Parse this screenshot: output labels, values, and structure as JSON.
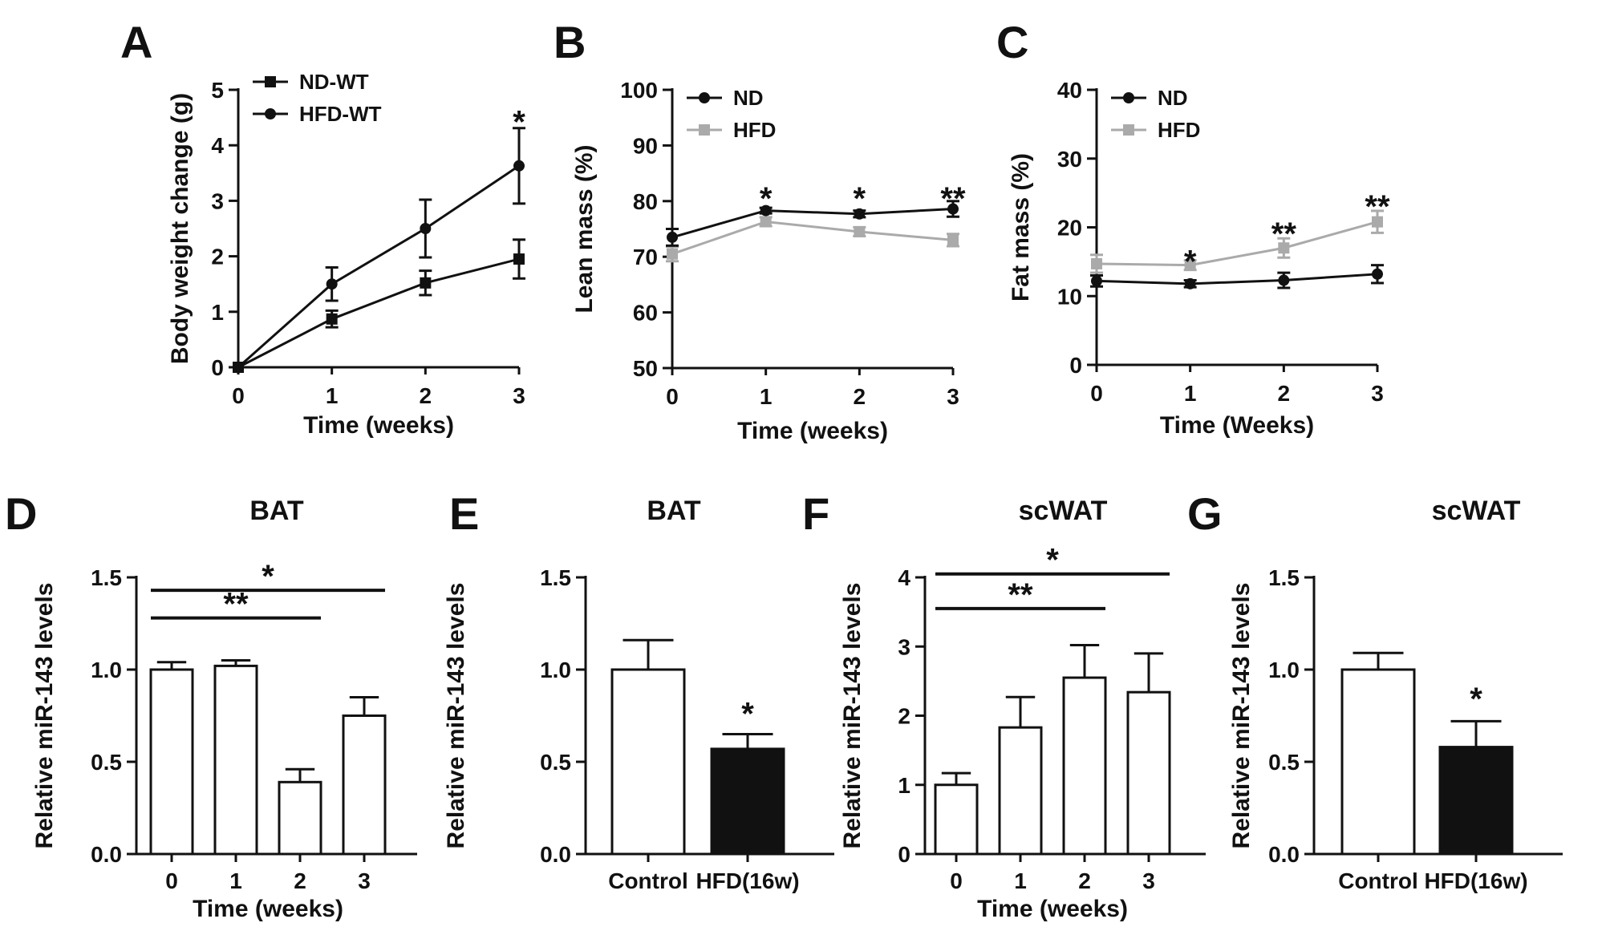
{
  "colors": {
    "ink": "#111111",
    "gray": "#aaaaaa",
    "white": "#ffffff"
  },
  "chart_data": [
    {
      "panel": "A",
      "type": "line",
      "title": "",
      "xlabel": "Time (weeks)",
      "ylabel": "Body weight change (g)",
      "xlim": [
        0,
        3
      ],
      "ylim": [
        0,
        5
      ],
      "xticks": [
        "0",
        "1",
        "2",
        "3"
      ],
      "yticks": [
        "0",
        "1",
        "2",
        "3",
        "4",
        "5"
      ],
      "legend_position": "top-left",
      "series": [
        {
          "name": "ND-WT",
          "marker": "square",
          "color": "#111111",
          "x": [
            0,
            1,
            2,
            3
          ],
          "values": [
            0,
            0.87,
            1.52,
            1.95
          ],
          "errors": [
            0,
            0.15,
            0.22,
            0.35
          ]
        },
        {
          "name": "HFD-WT",
          "marker": "circle",
          "color": "#111111",
          "x": [
            0,
            1,
            2,
            3
          ],
          "values": [
            0,
            1.5,
            2.5,
            3.63
          ],
          "errors": [
            0,
            0.3,
            0.52,
            0.68
          ]
        }
      ],
      "annotations": [
        {
          "x": 3,
          "y": 4.6,
          "text": "*"
        }
      ]
    },
    {
      "panel": "B",
      "type": "line",
      "title": "",
      "xlabel": "Time (weeks)",
      "ylabel": "Lean mass (%)",
      "xlim": [
        0,
        3
      ],
      "ylim": [
        50,
        100
      ],
      "xticks": [
        "0",
        "1",
        "2",
        "3"
      ],
      "yticks": [
        "50",
        "60",
        "70",
        "80",
        "90",
        "100"
      ],
      "legend_position": "top-left",
      "series": [
        {
          "name": "ND",
          "marker": "circle",
          "color": "#111111",
          "x": [
            0,
            1,
            2,
            3
          ],
          "values": [
            73.5,
            78.3,
            77.7,
            78.6
          ],
          "errors": [
            1.5,
            0.5,
            0.6,
            1.4
          ]
        },
        {
          "name": "HFD",
          "marker": "square",
          "color": "#aaaaaa",
          "x": [
            0,
            1,
            2,
            3
          ],
          "values": [
            70.5,
            76.3,
            74.5,
            73
          ],
          "errors": [
            1.3,
            0.8,
            0.8,
            1.1
          ]
        }
      ],
      "annotations": [
        {
          "x": 1,
          "y": 82.3,
          "text": "*"
        },
        {
          "x": 2,
          "y": 82.3,
          "text": "*"
        },
        {
          "x": 3,
          "y": 82.3,
          "text": "**"
        }
      ]
    },
    {
      "panel": "C",
      "type": "line",
      "title": "",
      "xlabel": "Time (Weeks)",
      "ylabel": "Fat mass (%)",
      "xlim": [
        0,
        3
      ],
      "ylim": [
        0,
        40
      ],
      "xticks": [
        "0",
        "1",
        "2",
        "3"
      ],
      "yticks": [
        "0",
        "10",
        "20",
        "30",
        "40"
      ],
      "legend_position": "top-left",
      "series": [
        {
          "name": "ND",
          "marker": "circle",
          "color": "#111111",
          "x": [
            0,
            1,
            2,
            3
          ],
          "values": [
            12.2,
            11.8,
            12.3,
            13.2
          ],
          "errors": [
            0.8,
            0.5,
            1.1,
            1.3
          ]
        },
        {
          "name": "HFD",
          "marker": "square",
          "color": "#aaaaaa",
          "x": [
            0,
            1,
            2,
            3
          ],
          "values": [
            14.7,
            14.5,
            17,
            20.8
          ],
          "errors": [
            1.3,
            0.7,
            1.4,
            1.6
          ]
        }
      ],
      "annotations": [
        {
          "x": 1,
          "y": 16.5,
          "text": "*"
        },
        {
          "x": 2,
          "y": 20.5,
          "text": "**"
        },
        {
          "x": 3,
          "y": 24.5,
          "text": "**"
        }
      ]
    },
    {
      "panel": "D",
      "type": "bar",
      "title": "BAT",
      "xlabel": "Time (weeks)",
      "ylabel": "Relative miR-143 levels",
      "ylim": [
        0,
        1.5
      ],
      "yticks": [
        "0.0",
        "0.5",
        "1.0",
        "1.5"
      ],
      "categories": [
        "0",
        "1",
        "2",
        "3"
      ],
      "series": [
        {
          "name": "miR-143",
          "values": [
            1.0,
            1.02,
            0.39,
            0.75
          ],
          "errors": [
            0.04,
            0.03,
            0.07,
            0.1
          ],
          "fills": [
            "#ffffff",
            "#ffffff",
            "#ffffff",
            "#ffffff"
          ]
        }
      ],
      "significance": [
        {
          "from": 0,
          "to": 2,
          "y": 1.28,
          "text": "**"
        },
        {
          "from": 0,
          "to": 3,
          "y": 1.43,
          "text": "*"
        }
      ],
      "annotations": []
    },
    {
      "panel": "E",
      "type": "bar",
      "title": "BAT",
      "xlabel": "",
      "ylabel": "Relative miR-143 levels",
      "ylim": [
        0,
        1.5
      ],
      "yticks": [
        "0.0",
        "0.5",
        "1.0",
        "1.5"
      ],
      "categories": [
        "Control",
        "HFD(16w)"
      ],
      "series": [
        {
          "name": "miR-143",
          "values": [
            1.0,
            0.57
          ],
          "errors": [
            0.16,
            0.08
          ],
          "fills": [
            "#ffffff",
            "#111111"
          ]
        }
      ],
      "significance": [],
      "annotations": [
        {
          "x": 1,
          "y": 0.72,
          "text": "*"
        }
      ]
    },
    {
      "panel": "F",
      "type": "bar",
      "title": "scWAT",
      "xlabel": "Time (weeks)",
      "ylabel": "Relative miR-143 levels",
      "ylim": [
        0,
        4
      ],
      "yticks": [
        "0",
        "1",
        "2",
        "3",
        "4"
      ],
      "categories": [
        "0",
        "1",
        "2",
        "3"
      ],
      "series": [
        {
          "name": "miR-143",
          "values": [
            1.0,
            1.83,
            2.55,
            2.34
          ],
          "errors": [
            0.17,
            0.44,
            0.47,
            0.56
          ]
        }
      ],
      "significance": [
        {
          "from": 0,
          "to": 2,
          "y": 3.55,
          "text": "**"
        },
        {
          "from": 0,
          "to": 3,
          "y": 4.05,
          "text": "*"
        }
      ],
      "annotations": []
    },
    {
      "panel": "G",
      "type": "bar",
      "title": "scWAT",
      "xlabel": "",
      "ylabel": "Relative miR-143 levels",
      "ylim": [
        0,
        1.5
      ],
      "yticks": [
        "0.0",
        "0.5",
        "1.0",
        "1.5"
      ],
      "categories": [
        "Control",
        "HFD(16w)"
      ],
      "series": [
        {
          "name": "miR-143",
          "values": [
            1.0,
            0.58
          ],
          "errors": [
            0.09,
            0.14
          ],
          "fills": [
            "#ffffff",
            "#111111"
          ]
        }
      ],
      "significance": [],
      "annotations": [
        {
          "x": 1,
          "y": 0.8,
          "text": "*"
        }
      ]
    }
  ]
}
